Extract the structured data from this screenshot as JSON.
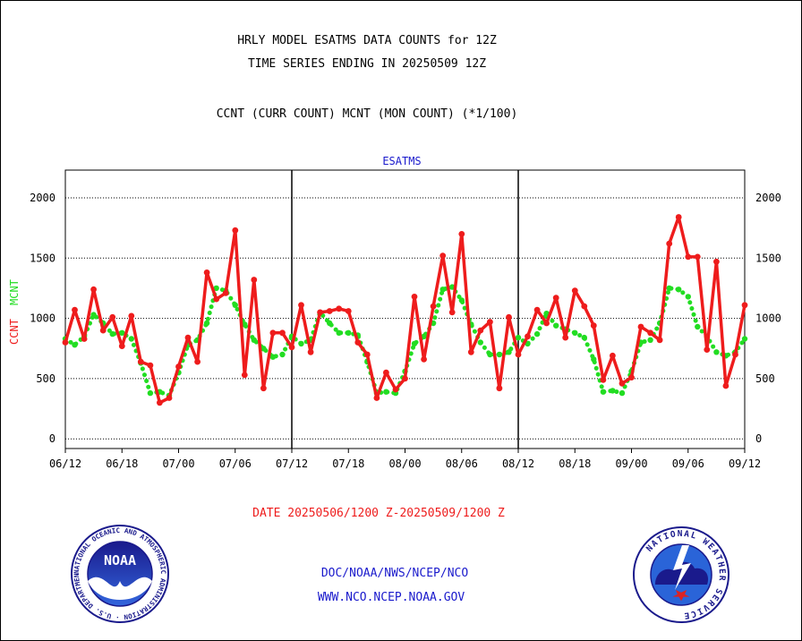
{
  "header": {
    "title_line1": "HRLY MODEL ESATMS DATA COUNTS for 12Z",
    "title_line2": "TIME SERIES ENDING IN 20250509 12Z",
    "subtitle": "CCNT (CURR COUNT) MCNT (MON COUNT) (*1/100)"
  },
  "footer": {
    "date_range": "DATE 20250506/1200 Z-20250509/1200 Z",
    "org_line": "DOC/NOAA/NWS/NCEP/NCO",
    "url_line": "WWW.NCO.NCEP.NOAA.GOV"
  },
  "logos": {
    "noaa_text": "NOAA",
    "noaa_ring": "NATIONAL OCEANIC AND ATMOSPHERIC ADMINISTRATION · U.S. DEPARTMENT OF COMMERCE ·",
    "nws_ring": "NATIONAL WEATHER SERVICE"
  },
  "colors": {
    "ccnt": "#ee1c1c",
    "mcnt": "#22dd22",
    "panel_label": "#1a1acc",
    "footer_red": "#ee1c1c",
    "footer_blue": "#1a1acc"
  },
  "chart_data": {
    "type": "line",
    "panel_label": "ESATMS",
    "ylabel_ccnt": "CCNT",
    "ylabel_mcnt": "MCNT",
    "ylim": [
      -80,
      2230
    ],
    "yticks": [
      0,
      500,
      1000,
      1500,
      2000
    ],
    "ytick_labels": [
      "0",
      "500",
      "1000",
      "1500",
      "2000"
    ],
    "x_tick_labels": [
      "06/12",
      "06/18",
      "07/00",
      "07/06",
      "07/12",
      "07/18",
      "08/00",
      "08/06",
      "08/12",
      "08/18",
      "09/00",
      "09/06",
      "09/12"
    ],
    "grid": true,
    "series": [
      {
        "name": "CCNT",
        "values": [
          800,
          1070,
          830,
          1240,
          900,
          1010,
          770,
          1020,
          640,
          610,
          300,
          340,
          600,
          840,
          640,
          1380,
          1160,
          1210,
          1730,
          530,
          1320,
          420,
          880,
          880,
          760,
          1110,
          720,
          1050,
          1060,
          1080,
          1060,
          800,
          700,
          340,
          550,
          410,
          500,
          1180,
          660,
          1100,
          1520,
          1050,
          1700,
          720,
          900,
          970,
          420,
          1010,
          700,
          850,
          1070,
          960,
          1170,
          840,
          1230,
          1100,
          940,
          490,
          690,
          460,
          510,
          930,
          880,
          820,
          1620,
          1840,
          1510,
          1510,
          740,
          1470,
          440,
          700,
          1110
        ]
      },
      {
        "name": "MCNT",
        "values": [
          830,
          780,
          850,
          1030,
          960,
          870,
          880,
          830,
          630,
          380,
          390,
          360,
          550,
          780,
          820,
          960,
          1250,
          1230,
          1110,
          950,
          820,
          750,
          680,
          700,
          850,
          790,
          820,
          1050,
          960,
          880,
          880,
          860,
          640,
          380,
          390,
          380,
          560,
          790,
          850,
          960,
          1240,
          1260,
          1150,
          950,
          800,
          700,
          700,
          720,
          840,
          790,
          870,
          1040,
          940,
          910,
          880,
          840,
          660,
          390,
          400,
          380,
          560,
          800,
          820,
          960,
          1250,
          1240,
          1180,
          930,
          850,
          720,
          690,
          720,
          830
        ]
      }
    ]
  }
}
